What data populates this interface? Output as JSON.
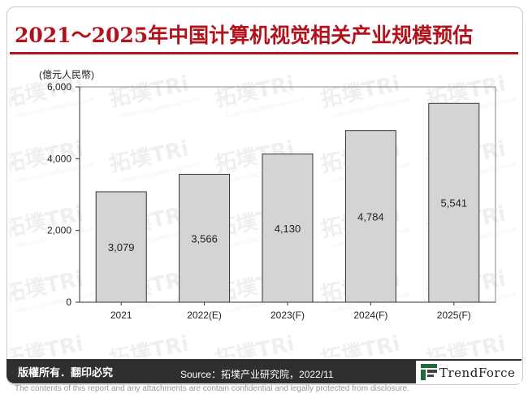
{
  "page": {
    "title": "2021～2025年中国计算机视觉相关产业规模预估",
    "copyright": "版權所有．翻印必究",
    "source": "Source：拓墣产业研究院，2022/11",
    "brand": "TrendForce",
    "disclaimer": "The contents of this report and any attachments are contain confidential and legally protected from disclosure."
  },
  "colors": {
    "title": "#b3121c",
    "bar_fill": "#d4d4d4",
    "bar_stroke": "#333333",
    "bottom_bar": "#2f2f2f"
  },
  "chart_data": {
    "type": "bar",
    "title": "",
    "ylabel": "(億元人民幣)",
    "xlabel": "",
    "categories": [
      "2021",
      "2022(E)",
      "2023(F)",
      "2024(F)",
      "2025(F)"
    ],
    "values": [
      3079,
      3566,
      4130,
      4784,
      5541
    ],
    "value_labels": [
      "3,079",
      "3,566",
      "4,130",
      "4,784",
      "5,541"
    ],
    "ylim": [
      0,
      6000
    ],
    "yticks": [
      0,
      2000,
      4000,
      6000
    ],
    "ytick_labels": [
      "0",
      "2,000",
      "4,000",
      "6,000"
    ],
    "grid": false,
    "legend": "none"
  }
}
